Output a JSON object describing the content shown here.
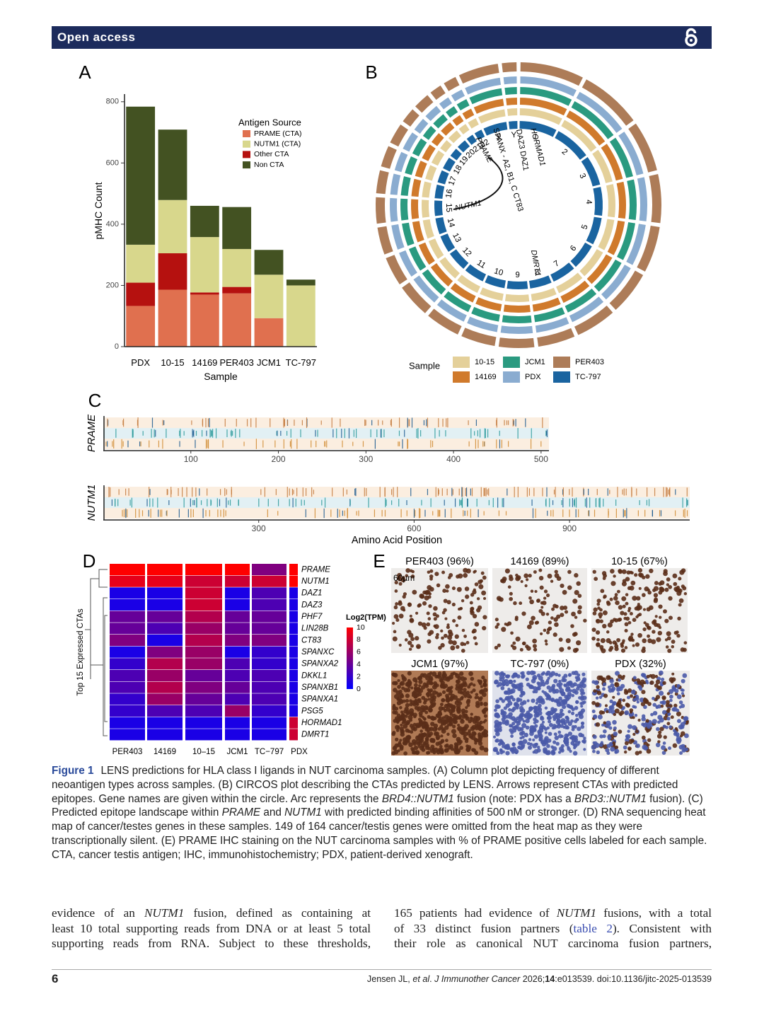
{
  "header": {
    "title": "Open access"
  },
  "panel_labels": [
    "A",
    "B",
    "C",
    "D",
    "E"
  ],
  "chart_data": [
    {
      "type": "bar",
      "stacked": true,
      "y_label": "pMHC Count",
      "x_label": "Sample",
      "categories": [
        "PDX",
        "10-15",
        "14169",
        "PER403",
        "JCM1",
        "TC-797"
      ],
      "series": [
        {
          "name": "PRAME (CTA)",
          "color": "#e0704f",
          "values": [
            133,
            186,
            170,
            174,
            93,
            0
          ]
        },
        {
          "name": "Other CTA",
          "color": "#b5110f",
          "values": [
            76,
            119,
            7,
            21,
            0,
            0
          ]
        },
        {
          "name": "NUTM1 (CTA)",
          "color": "#d8d78c",
          "values": [
            124,
            174,
            181,
            124,
            142,
            200
          ]
        },
        {
          "name": "Non CTA",
          "color": "#435222",
          "values": [
            451,
            230,
            102,
            137,
            81,
            19
          ]
        }
      ],
      "legend_title": "Antigen Source",
      "legend_order": [
        0,
        2,
        1,
        3
      ],
      "ylim": [
        0,
        825
      ],
      "yticks": [
        0,
        200,
        400,
        600,
        800
      ]
    },
    {
      "type": "heatmap",
      "y_label": "Top 15 Expressed CTAs",
      "rows": [
        "PRAME",
        "NUTM1",
        "DAZ1",
        "DAZ3",
        "PHF7",
        "LIN28B",
        "CT83",
        "SPANXC",
        "SPANXA2",
        "DKKL1",
        "SPANXB1",
        "SPANXA1",
        "PSG5",
        "HORMAD1",
        "DMRT1"
      ],
      "columns": [
        "PER403",
        "14169",
        "10–15",
        "JCM1",
        "TC−797",
        "PDX"
      ],
      "values": [
        [
          10,
          10,
          10,
          10,
          5,
          10
        ],
        [
          9,
          9,
          8,
          8,
          8,
          10
        ],
        [
          1,
          1,
          8,
          1,
          3,
          1
        ],
        [
          1,
          1,
          8,
          1,
          3,
          1
        ],
        [
          4,
          4,
          7,
          4,
          4,
          1
        ],
        [
          4,
          3,
          6,
          4,
          4,
          1
        ],
        [
          5,
          1,
          7,
          5,
          5,
          1
        ],
        [
          1,
          5,
          6,
          1,
          2,
          1
        ],
        [
          2,
          7,
          6,
          3,
          2,
          1
        ],
        [
          3,
          6,
          4,
          3,
          3,
          1
        ],
        [
          3,
          7,
          5,
          4,
          3,
          1
        ],
        [
          2,
          6,
          4,
          3,
          3,
          1
        ],
        [
          2,
          3,
          3,
          6,
          2,
          1
        ],
        [
          1,
          1,
          1,
          1,
          1,
          8
        ],
        [
          1,
          1,
          1,
          1,
          1,
          8
        ]
      ],
      "legend_title": "Log2(TPM)",
      "zlim": [
        0,
        10
      ],
      "zticks": [
        0,
        2,
        4,
        6,
        8,
        10
      ],
      "low_color": "#0000ff",
      "high_color": "#ff0000"
    },
    {
      "type": "track",
      "title": "PRAME",
      "xlim": [
        0,
        509
      ],
      "xticks": [
        100,
        200,
        300,
        400,
        500
      ]
    },
    {
      "type": "track",
      "title": "NUTM1",
      "xlim": [
        0,
        1132
      ],
      "xticks": [
        300,
        600,
        900
      ],
      "x_label": "Amino Acid Position"
    }
  ],
  "circos": {
    "chromosomes": [
      "1",
      "2",
      "3",
      "4",
      "5",
      "6",
      "7",
      "8",
      "9",
      "10",
      "11",
      "12",
      "13",
      "14",
      "15",
      "16",
      "17",
      "18",
      "19",
      "20",
      "21",
      "22",
      "X",
      "Y"
    ],
    "genes": [
      "HORMAD1",
      "DAZ3 DAZ1",
      "SPANX - A2, B1, C  CT83",
      "PRAME",
      "NUTM1",
      "DMRT1"
    ],
    "legend_title": "Sample",
    "samples": [
      {
        "name": "TC-797",
        "color": "#1a64a0"
      },
      {
        "name": "10-15",
        "color": "#e4d09a"
      },
      {
        "name": "14169",
        "color": "#d07a2c"
      },
      {
        "name": "JCM1",
        "color": "#2a9a80"
      },
      {
        "name": "PDX",
        "color": "#8aacd0"
      },
      {
        "name": "PER403",
        "color": "#ad7c58"
      }
    ]
  },
  "ihc": {
    "panels": [
      "PER403 (96%)",
      "14169 (89%)",
      "10-15 (67%)",
      "JCM1 (97%)",
      "TC-797 (0%)",
      "PDX (32%)"
    ],
    "scale": "60µm"
  },
  "caption": {
    "label": "Figure 1",
    "runs": [
      "LENS predictions for HLA class I ligands in NUT carcinoma samples. (A) Column plot depicting frequency of different neoantigen types across samples. (B) CIRCOS plot describing the CTAs predicted by LENS. Arrows represent CTAs with predicted epitopes. Gene names are given within the circle. Arc represents the ",
      {
        "italic": "BRD4::NUTM1"
      },
      " fusion (note: PDX has a ",
      {
        "italic": "BRD3::NUTM1"
      },
      " fusion). (C) Predicted epitope landscape within ",
      {
        "italic": "PRAME"
      },
      " and ",
      {
        "italic": "NUTM1"
      },
      " with predicted binding affinities of 500 nM or stronger. (D) RNA sequencing heat map of cancer/testes genes in these samples. 149 of 164 cancer/testis genes were omitted from the heat map as they were transcriptionally silent. (E) PRAME IHC staining on the NUT carcinoma samples with % of PRAME positive cells labeled for each sample. CTA, cancer testis antigen; IHC, immunohistochemistry; PDX, patient-derived xenograft."
    ]
  },
  "body": {
    "left": [
      [
        "evidence of an ",
        {
          "italic": "NUTM1"
        },
        " fusion, defined as containing at"
      ],
      [
        "least 10 total supporting reads from DNA or at least 5 total"
      ],
      [
        "supporting reads from RNA. Subject to these thresholds,"
      ]
    ],
    "right": [
      [
        "165 patients had evidence of ",
        {
          "italic": "NUTM1"
        },
        " fusions, with a total"
      ],
      [
        "of 33 distinct fusion partners (",
        {
          "link": "table 2"
        },
        "). Consistent with"
      ],
      [
        "their role as canonical NUT carcinoma fusion partners,"
      ]
    ]
  },
  "footer": {
    "page": "6",
    "citation": [
      "Jensen JL, ",
      {
        "italic": "et al"
      },
      ". ",
      {
        "italic": "J Immunother Cancer"
      },
      " 2026;",
      {
        "bold": "14"
      },
      ":e013539. doi:10.1136/jitc-2025-013539"
    ]
  }
}
